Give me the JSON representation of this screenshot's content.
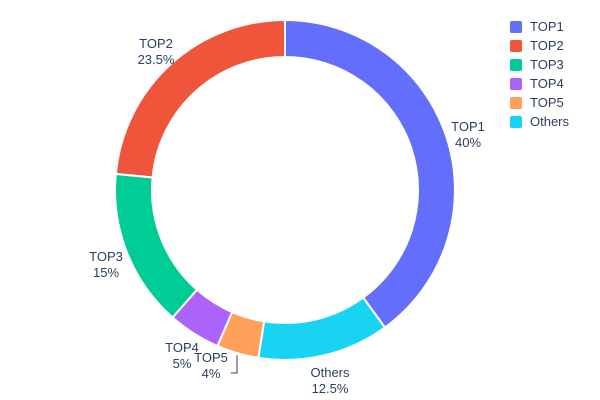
{
  "chart_data": {
    "type": "pie",
    "subtype": "donut",
    "title": "",
    "labels": [
      "TOP1",
      "TOP2",
      "TOP3",
      "TOP4",
      "TOP5",
      "Others"
    ],
    "values": [
      40,
      23.5,
      15,
      5,
      4,
      12.5
    ],
    "display_percents": [
      "40%",
      "23.5%",
      "15%",
      "5%",
      "4%",
      "12.5%"
    ],
    "colors": [
      "#636efa",
      "#ef553b",
      "#00cc96",
      "#ab63fa",
      "#ffa15a",
      "#19d3f3"
    ],
    "hole_ratio": 0.78,
    "order_clockwise_from_top": [
      "TOP1",
      "Others",
      "TOP5",
      "TOP4",
      "TOP3",
      "TOP2"
    ],
    "background": "#ffffff",
    "text_color": "#2a3f5f",
    "legend": {
      "position": "top-right",
      "entries": [
        "TOP1",
        "TOP2",
        "TOP3",
        "TOP4",
        "TOP5",
        "Others"
      ]
    }
  }
}
